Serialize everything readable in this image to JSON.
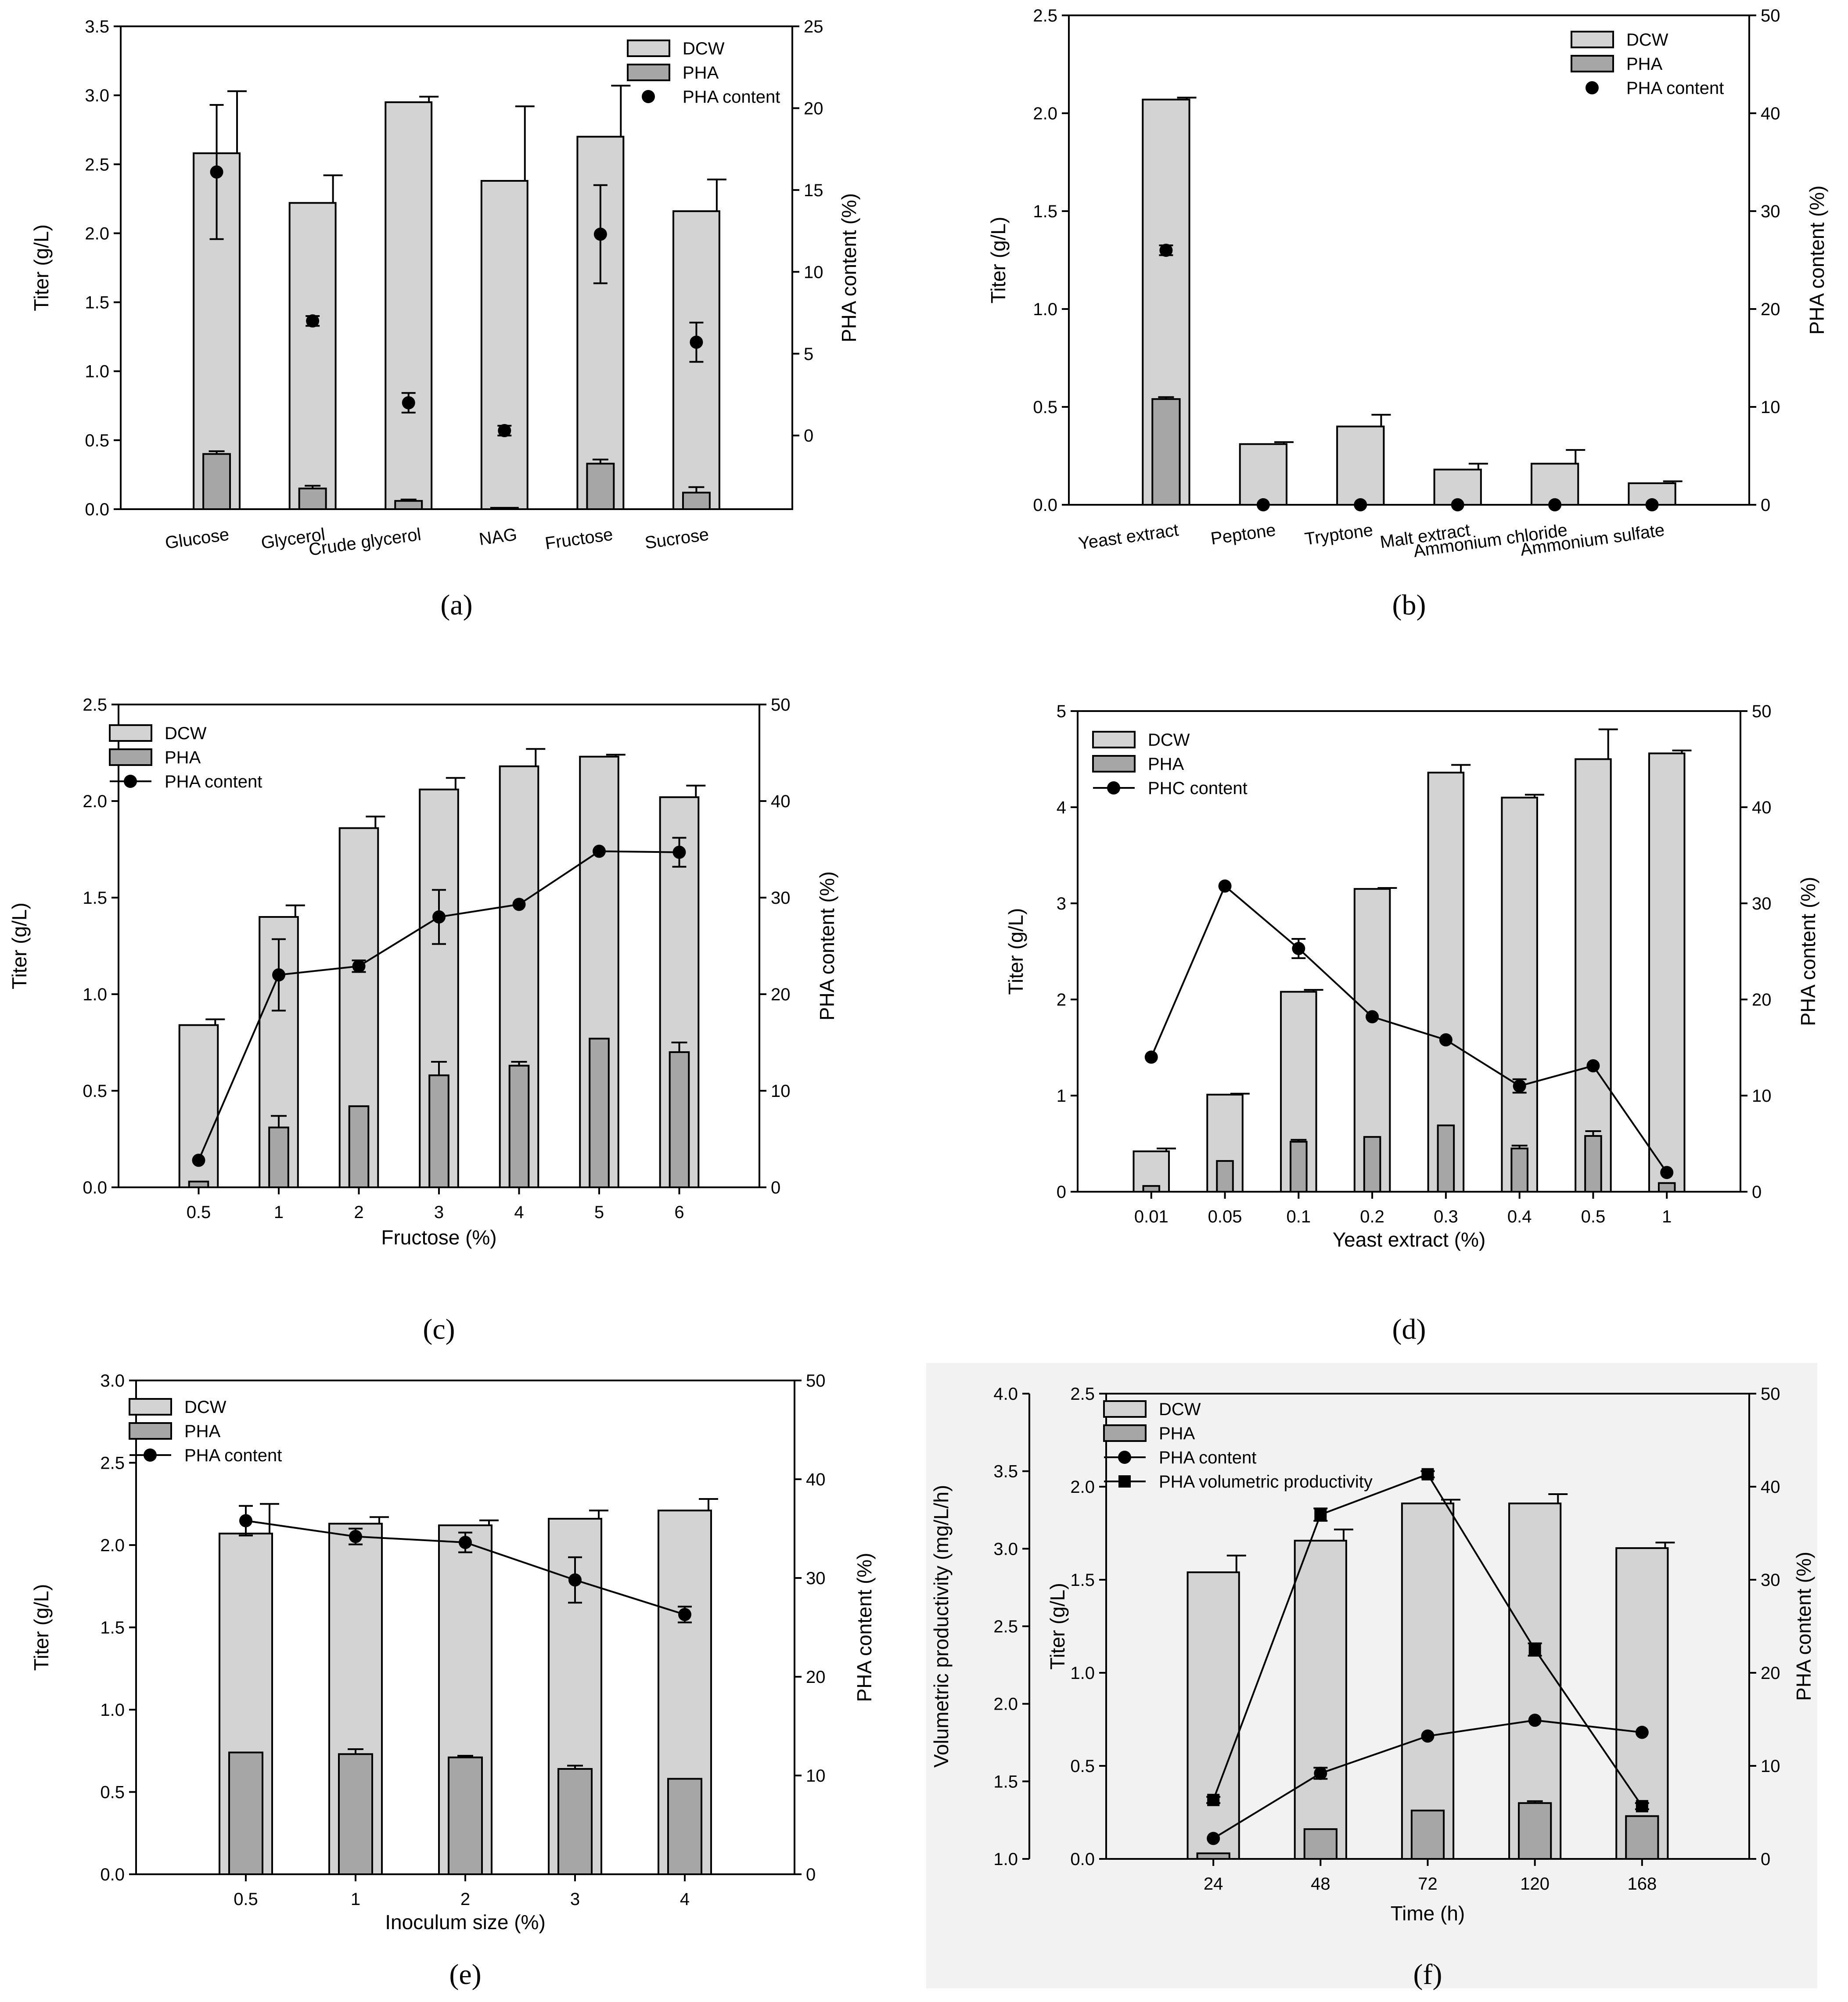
{
  "figure": {
    "title": "PHA production optimization panels",
    "colors": {
      "dcw": "#d3d3d3",
      "pha": "#a6a6a6",
      "marker": "#000000",
      "panel_f_bg": "#f2f2f2"
    }
  },
  "chart_data": [
    {
      "panel": "(a)",
      "type": "bar",
      "categories": [
        "Glucose",
        "Glycerol",
        "Crude glycerol",
        "NAG",
        "Fructose",
        "Sucrose"
      ],
      "ylabel": "Titer (g/L)",
      "ylim": [
        0,
        3.5
      ],
      "yticks": [
        "0.0",
        "0.5",
        "1.0",
        "1.5",
        "2.0",
        "2.5",
        "3.0",
        "3.5"
      ],
      "y2label": "PHA content (%)",
      "y2lim": [
        -4.5,
        25
      ],
      "y2ticks": [
        "0",
        "5",
        "10",
        "15",
        "20",
        "25"
      ],
      "xlabel": "",
      "legend": [
        "DCW",
        "PHA",
        "PHA content"
      ],
      "series": [
        {
          "name": "DCW",
          "values": [
            2.58,
            2.22,
            2.95,
            2.38,
            2.7,
            2.16
          ],
          "errors": [
            0.45,
            0.2,
            0.04,
            0.54,
            0.37,
            0.23
          ]
        },
        {
          "name": "PHA",
          "values": [
            0.4,
            0.15,
            0.06,
            0.01,
            0.33,
            0.12
          ],
          "errors": [
            0.02,
            0.02,
            0.01,
            0.0,
            0.03,
            0.04
          ]
        },
        {
          "name": "PHA content",
          "axis": "right",
          "style": "points",
          "values": [
            16.1,
            7.0,
            2.0,
            0.3,
            12.3,
            5.7
          ],
          "errors": [
            4.1,
            0.3,
            0.6,
            0.3,
            3.0,
            1.2
          ]
        }
      ]
    },
    {
      "panel": "(b)",
      "type": "bar",
      "categories": [
        "Yeast extract",
        "Peptone",
        "Tryptone",
        "Malt extract",
        "Ammonium chloride",
        "Ammonium sulfate"
      ],
      "ylabel": "Titer (g/L)",
      "ylim": [
        0,
        2.5
      ],
      "yticks": [
        "0.0",
        "0.5",
        "1.0",
        "1.5",
        "2.0",
        "2.5"
      ],
      "y2label": "PHA content (%)",
      "y2lim": [
        0,
        50
      ],
      "y2ticks": [
        "0",
        "10",
        "20",
        "30",
        "40",
        "50"
      ],
      "xlabel": "",
      "legend": [
        "DCW",
        "PHA",
        "PHA content"
      ],
      "series": [
        {
          "name": "DCW",
          "values": [
            2.07,
            0.31,
            0.4,
            0.18,
            0.21,
            0.11
          ],
          "errors": [
            0.01,
            0.01,
            0.06,
            0.03,
            0.07,
            0.01
          ]
        },
        {
          "name": "PHA",
          "values": [
            0.54,
            0,
            0,
            0,
            0,
            0
          ],
          "errors": [
            0.01,
            0,
            0,
            0,
            0,
            0
          ]
        },
        {
          "name": "PHA content",
          "axis": "right",
          "style": "points",
          "values": [
            26.0,
            0,
            0,
            0,
            0,
            0
          ],
          "errors": [
            0.5,
            0,
            0,
            0,
            0,
            0
          ]
        }
      ]
    },
    {
      "panel": "(c)",
      "type": "bar",
      "categories": [
        "0.5",
        "1",
        "2",
        "3",
        "4",
        "5",
        "6"
      ],
      "ylabel": "Titer (g/L)",
      "ylim": [
        0,
        2.5
      ],
      "yticks": [
        "0.0",
        "0.5",
        "1.0",
        "1.5",
        "2.0",
        "2.5"
      ],
      "y2label": "PHA content (%)",
      "y2lim": [
        0,
        50
      ],
      "y2ticks": [
        "0",
        "10",
        "20",
        "30",
        "40",
        "50"
      ],
      "xlabel": "Fructose (%)",
      "legend": [
        "DCW",
        "PHA",
        "PHA content"
      ],
      "series": [
        {
          "name": "DCW",
          "values": [
            0.84,
            1.4,
            1.86,
            2.06,
            2.18,
            2.23,
            2.02
          ],
          "errors": [
            0.03,
            0.06,
            0.06,
            0.06,
            0.09,
            0.01,
            0.06
          ]
        },
        {
          "name": "PHA",
          "values": [
            0.03,
            0.31,
            0.42,
            0.58,
            0.63,
            0.77,
            0.7
          ],
          "errors": [
            0,
            0.06,
            0,
            0.07,
            0.02,
            0,
            0.05
          ]
        },
        {
          "name": "PHA content",
          "axis": "right",
          "style": "line",
          "values": [
            2.8,
            22.0,
            22.9,
            28.0,
            29.3,
            34.8,
            34.7
          ],
          "errors": [
            0,
            3.7,
            0.6,
            2.8,
            0,
            0,
            1.5
          ]
        }
      ]
    },
    {
      "panel": "(d)",
      "type": "bar",
      "categories": [
        "0.01",
        "0.05",
        "0.1",
        "0.2",
        "0.3",
        "0.4",
        "0.5",
        "1"
      ],
      "ylabel": "Titer (g/L)",
      "ylim": [
        0,
        5
      ],
      "yticks": [
        "0",
        "1",
        "2",
        "3",
        "4",
        "5"
      ],
      "y2label": "PHA content (%)",
      "y2lim": [
        0,
        50
      ],
      "y2ticks": [
        "0",
        "10",
        "20",
        "30",
        "40",
        "50"
      ],
      "xlabel": "Yeast extract (%)",
      "legend": [
        "DCW",
        "PHA",
        "PHC content"
      ],
      "series": [
        {
          "name": "DCW",
          "values": [
            0.42,
            1.01,
            2.08,
            3.15,
            4.36,
            4.1,
            4.5,
            4.56
          ],
          "errors": [
            0.03,
            0.01,
            0.02,
            0.01,
            0.08,
            0.03,
            0.31,
            0.03
          ]
        },
        {
          "name": "PHA",
          "values": [
            0.06,
            0.32,
            0.52,
            0.57,
            0.69,
            0.45,
            0.58,
            0.09
          ],
          "errors": [
            0,
            0,
            0.02,
            0,
            0,
            0.03,
            0.05,
            0
          ]
        },
        {
          "name": "PHC content",
          "axis": "right",
          "style": "line",
          "values": [
            14.0,
            31.8,
            25.3,
            18.2,
            15.8,
            11.0,
            13.1,
            2.0
          ],
          "errors": [
            0,
            0,
            1.0,
            0,
            0,
            0.7,
            0,
            0
          ]
        }
      ]
    },
    {
      "panel": "(e)",
      "type": "bar",
      "categories": [
        "0.5",
        "1",
        "2",
        "3",
        "4"
      ],
      "ylabel": "Titer (g/L)",
      "ylim": [
        0,
        3.0
      ],
      "yticks": [
        "0.0",
        "0.5",
        "1.0",
        "1.5",
        "2.0",
        "2.5",
        "3.0"
      ],
      "y2label": "PHA content (%)",
      "y2lim": [
        0,
        50
      ],
      "y2ticks": [
        "0",
        "10",
        "20",
        "30",
        "40",
        "50"
      ],
      "xlabel": "Inoculum size (%)",
      "legend": [
        "DCW",
        "PHA",
        "PHA content"
      ],
      "series": [
        {
          "name": "DCW",
          "values": [
            2.07,
            2.13,
            2.12,
            2.16,
            2.21
          ],
          "errors": [
            0.18,
            0.04,
            0.03,
            0.05,
            0.07
          ]
        },
        {
          "name": "PHA",
          "values": [
            0.74,
            0.73,
            0.71,
            0.64,
            0.58
          ],
          "errors": [
            0,
            0.03,
            0.01,
            0.02,
            0
          ]
        },
        {
          "name": "PHA content",
          "axis": "right",
          "style": "line",
          "values": [
            35.8,
            34.2,
            33.6,
            29.8,
            26.3
          ],
          "errors": [
            1.5,
            0.8,
            1.0,
            2.3,
            0.8
          ]
        }
      ]
    },
    {
      "panel": "(f)",
      "type": "bar",
      "categories": [
        "24",
        "48",
        "72",
        "120",
        "168"
      ],
      "ylabel": "Titer (g/L)",
      "ylim": [
        0,
        2.5
      ],
      "yticks": [
        "0.0",
        "0.5",
        "1.0",
        "1.5",
        "2.0",
        "2.5"
      ],
      "y2label": "PHA content (%)",
      "y2lim": [
        0,
        50
      ],
      "y2ticks": [
        "0",
        "10",
        "20",
        "30",
        "40",
        "50"
      ],
      "y3label": "Volumetric productivity (mg/L/h)",
      "y3lim": [
        1.0,
        4.0
      ],
      "y3ticks": [
        "1.0",
        "1.5",
        "2.0",
        "2.5",
        "3.0",
        "3.5",
        "4.0"
      ],
      "xlabel": "Time (h)",
      "legend": [
        "DCW",
        "PHA",
        "PHA content",
        "PHA volumetric productivity"
      ],
      "series": [
        {
          "name": "DCW",
          "values": [
            1.54,
            1.71,
            1.91,
            1.91,
            1.67
          ],
          "errors": [
            0.09,
            0.06,
            0.02,
            0.05,
            0.03
          ]
        },
        {
          "name": "PHA",
          "values": [
            0.03,
            0.16,
            0.26,
            0.3,
            0.23
          ],
          "errors": [
            0,
            0,
            0,
            0.01,
            0
          ]
        },
        {
          "name": "PHA content",
          "axis": "right",
          "style": "line",
          "values": [
            2.2,
            9.2,
            13.2,
            14.9,
            13.6
          ],
          "errors": [
            0,
            0.6,
            0,
            0,
            0
          ]
        },
        {
          "name": "PHA volumetric productivity",
          "axis": "far-left",
          "style": "line-square",
          "values": [
            1.38,
            3.22,
            3.48,
            2.35,
            1.34
          ],
          "errors": [
            0.02,
            0.04,
            0.02,
            0.04,
            0.02
          ]
        }
      ]
    }
  ]
}
